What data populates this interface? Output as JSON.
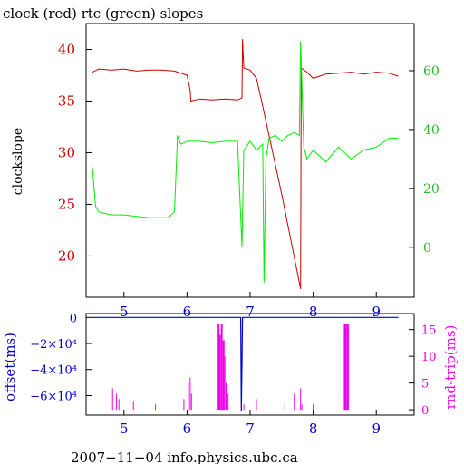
{
  "chart_data": [
    {
      "type": "line",
      "title": "clock (red) rtc (green) slopes",
      "ylabel": "clockslope",
      "xlim": [
        4.4,
        9.6
      ],
      "ylim_left": [
        16,
        42.5
      ],
      "ylim_right": [
        -17,
        76
      ],
      "x_ticks": [
        5,
        6,
        7,
        8,
        9
      ],
      "y_ticks_left": [
        20,
        25,
        30,
        35,
        40
      ],
      "y_ticks_right": [
        0,
        20,
        40,
        60
      ],
      "colors": {
        "clock": "#cc0000",
        "rtc": "#00ee00",
        "axis": "#000000"
      },
      "series": [
        {
          "name": "clock",
          "axis": "left",
          "x": [
            4.5,
            4.6,
            4.8,
            5.0,
            5.2,
            5.4,
            5.6,
            5.8,
            6.0,
            6.05,
            6.06,
            6.2,
            6.4,
            6.6,
            6.8,
            6.87,
            6.88,
            6.9,
            7.0,
            7.1,
            7.2,
            7.5,
            7.8,
            7.81,
            7.9,
            8.0,
            8.2,
            8.4,
            8.6,
            8.8,
            9.0,
            9.2,
            9.35
          ],
          "y": [
            37.8,
            38.1,
            38.0,
            38.1,
            37.9,
            38.0,
            38.0,
            37.9,
            37.5,
            36.0,
            35.0,
            35.2,
            35.1,
            35.2,
            35.1,
            35.3,
            41.0,
            38.2,
            38.0,
            37.2,
            34.5,
            26.0,
            16.8,
            38.2,
            37.8,
            37.2,
            37.6,
            37.7,
            37.8,
            37.6,
            37.8,
            37.7,
            37.4
          ]
        },
        {
          "name": "rtc",
          "axis": "right",
          "x": [
            4.5,
            4.55,
            4.6,
            4.8,
            5.0,
            5.2,
            5.4,
            5.6,
            5.7,
            5.8,
            5.85,
            5.9,
            6.0,
            6.2,
            6.4,
            6.6,
            6.8,
            6.87,
            6.9,
            7.0,
            7.1,
            7.2,
            7.22,
            7.25,
            7.3,
            7.4,
            7.5,
            7.6,
            7.7,
            7.78,
            7.8,
            7.85,
            7.9,
            8.0,
            8.2,
            8.4,
            8.6,
            8.8,
            9.0,
            9.2,
            9.35
          ],
          "y": [
            27,
            14,
            12,
            11,
            11,
            10.5,
            10,
            10,
            10,
            12,
            38,
            35,
            36,
            36,
            35.5,
            36,
            36,
            0,
            33,
            36,
            33,
            35,
            -12,
            30,
            37,
            38,
            36,
            38,
            39,
            38,
            70,
            34,
            30,
            33,
            29,
            34,
            30,
            33,
            34,
            37,
            37
          ]
        }
      ]
    },
    {
      "type": "bar",
      "ylabel_left": "offset(ms)",
      "ylabel_right": "rnd-trip(ms)",
      "xlim": [
        4.4,
        9.6
      ],
      "ylim_left": [
        -75000,
        3000
      ],
      "ylim_right": [
        -1,
        18
      ],
      "x_ticks": [
        5,
        6,
        7,
        8,
        9
      ],
      "y_ticks_left": [
        "0",
        "−2×10⁴",
        "−4×10⁴",
        "−6×10⁴"
      ],
      "y_ticks_left_values": [
        0,
        -20000,
        -40000,
        -60000
      ],
      "y_ticks_right": [
        0,
        5,
        10,
        15
      ],
      "colors": {
        "offset": "#0000cc",
        "roundtrip": "#ee00ee"
      },
      "series": [
        {
          "name": "offset",
          "axis": "left",
          "x": [
            4.5,
            6.85,
            6.86,
            6.87,
            6.88,
            9.35
          ],
          "y": [
            0,
            0,
            -72000,
            -35000,
            0,
            0
          ]
        },
        {
          "name": "roundtrip",
          "axis": "right",
          "x": [
            4.82,
            4.88,
            4.92,
            5.15,
            5.5,
            5.95,
            6.02,
            6.05,
            6.07,
            6.5,
            6.52,
            6.55,
            6.58,
            6.6,
            6.62,
            6.65,
            6.9,
            7.1,
            7.55,
            7.7,
            7.8,
            7.82,
            8.0,
            8.5,
            8.52,
            8.55
          ],
          "y": [
            4,
            3,
            2,
            1.5,
            1,
            2,
            5,
            6,
            3,
            16,
            14,
            16,
            13,
            10,
            5,
            3,
            1,
            2,
            1,
            3,
            4,
            1,
            1,
            16,
            16,
            16
          ]
        }
      ]
    }
  ],
  "footer": "2007−11−04 info.physics.ubc.ca"
}
